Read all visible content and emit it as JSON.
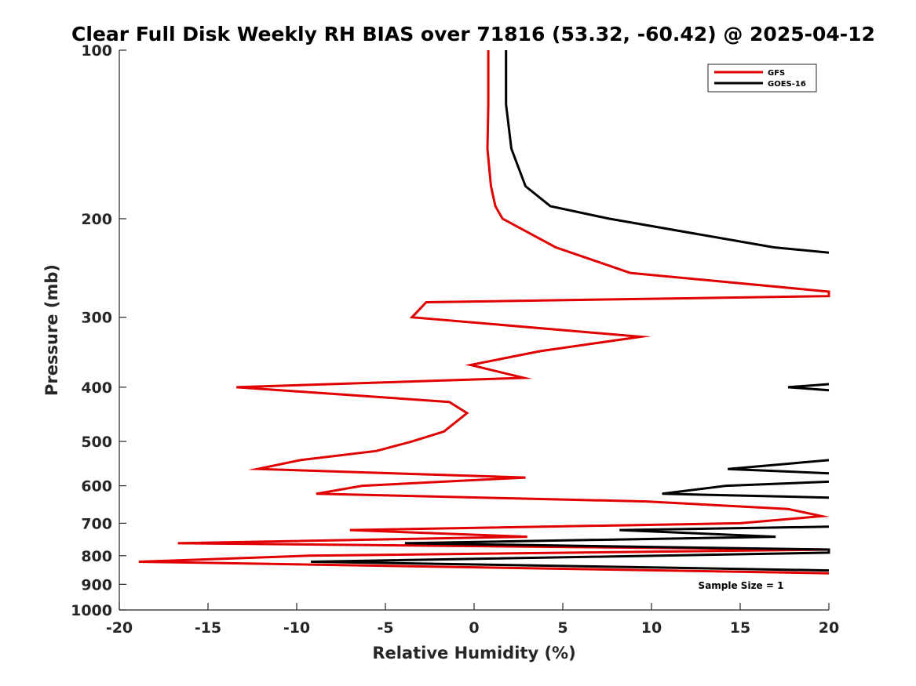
{
  "chart_data": {
    "type": "line",
    "title": "Clear Full Disk Weekly RH BIAS over 71816 (53.32, -60.42) @ 2025-04-12",
    "xlabel": "Relative Humidity (%)",
    "ylabel": "Pressure (mb)",
    "xlim": [
      -20,
      20
    ],
    "ylim": [
      100,
      1000
    ],
    "yscale": "log",
    "yreversed": true,
    "xticks": [
      -20,
      -15,
      -10,
      -5,
      0,
      5,
      10,
      15,
      20
    ],
    "yticks": [
      100,
      200,
      300,
      400,
      500,
      600,
      700,
      800,
      900,
      1000
    ],
    "legend_position": "top-right",
    "annotation": "Sample Size = 1",
    "series": [
      {
        "name": "GFS",
        "color": "#e00000",
        "points": [
          [
            0.8,
            100
          ],
          [
            0.8,
            125
          ],
          [
            0.75,
            150
          ],
          [
            0.95,
            175
          ],
          [
            1.2,
            190
          ],
          [
            1.6,
            200
          ],
          [
            4.6,
            225
          ],
          [
            8.8,
            250
          ],
          [
            20.0,
            270
          ],
          [
            20.0,
            275
          ],
          [
            -2.7,
            282
          ],
          [
            -3.5,
            300
          ],
          [
            9.4,
            325
          ],
          [
            3.7,
            345
          ],
          [
            -0.2,
            365
          ],
          [
            2.8,
            385
          ],
          [
            -13.4,
            400
          ],
          [
            -1.4,
            425
          ],
          [
            -0.4,
            445
          ],
          [
            -1.7,
            480
          ],
          [
            -3.5,
            500
          ],
          [
            -5.5,
            520
          ],
          [
            -9.8,
            540
          ],
          [
            -12.2,
            560
          ],
          [
            2.9,
            580
          ],
          [
            -6.3,
            600
          ],
          [
            -8.9,
            620
          ],
          [
            9.7,
            640
          ],
          [
            17.7,
            660
          ],
          [
            19.6,
            680
          ],
          [
            15.0,
            700
          ],
          [
            -7.0,
            720
          ],
          [
            3.0,
            740
          ],
          [
            -16.7,
            760
          ],
          [
            20.0,
            780
          ],
          [
            -9.3,
            800
          ],
          [
            -18.9,
            820
          ],
          [
            20.0,
            860
          ]
        ]
      },
      {
        "name": "GOES-16",
        "color": "#000000",
        "segments": [
          [
            [
              1.8,
              100
            ],
            [
              1.8,
              125
            ],
            [
              2.1,
              150
            ],
            [
              2.9,
              175
            ],
            [
              4.3,
              190
            ],
            [
              7.6,
              200
            ],
            [
              16.9,
              225
            ],
            [
              20.0,
              230
            ]
          ],
          [
            [
              20.0,
              395
            ],
            [
              17.7,
              400
            ],
            [
              20.0,
              405
            ]
          ],
          [
            [
              20.0,
              540
            ],
            [
              14.3,
              560
            ],
            [
              20.0,
              570
            ]
          ],
          [
            [
              20.0,
              590
            ],
            [
              14.2,
              600
            ],
            [
              10.6,
              620
            ],
            [
              20.0,
              630
            ]
          ],
          [
            [
              20.0,
              710
            ],
            [
              8.2,
              720
            ],
            [
              17.0,
              740
            ],
            [
              -3.9,
              760
            ],
            [
              20.0,
              780
            ],
            [
              20.0,
              790
            ],
            [
              -9.2,
              820
            ],
            [
              20.0,
              850
            ]
          ]
        ]
      }
    ]
  }
}
